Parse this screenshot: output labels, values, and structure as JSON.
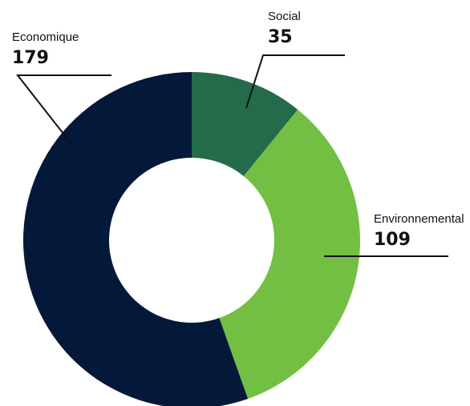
{
  "chart_data": {
    "type": "pie",
    "title": "",
    "slices": [
      {
        "name": "Social",
        "value": 35,
        "value_label": "35",
        "color": "#246b4b"
      },
      {
        "name": "Environnemental",
        "value": 109,
        "value_label": "109",
        "color": "#72bf44"
      },
      {
        "name": "Economique",
        "value": 179,
        "value_label": "179",
        "color": "#04183a"
      }
    ],
    "donut": true,
    "legend": "none"
  }
}
